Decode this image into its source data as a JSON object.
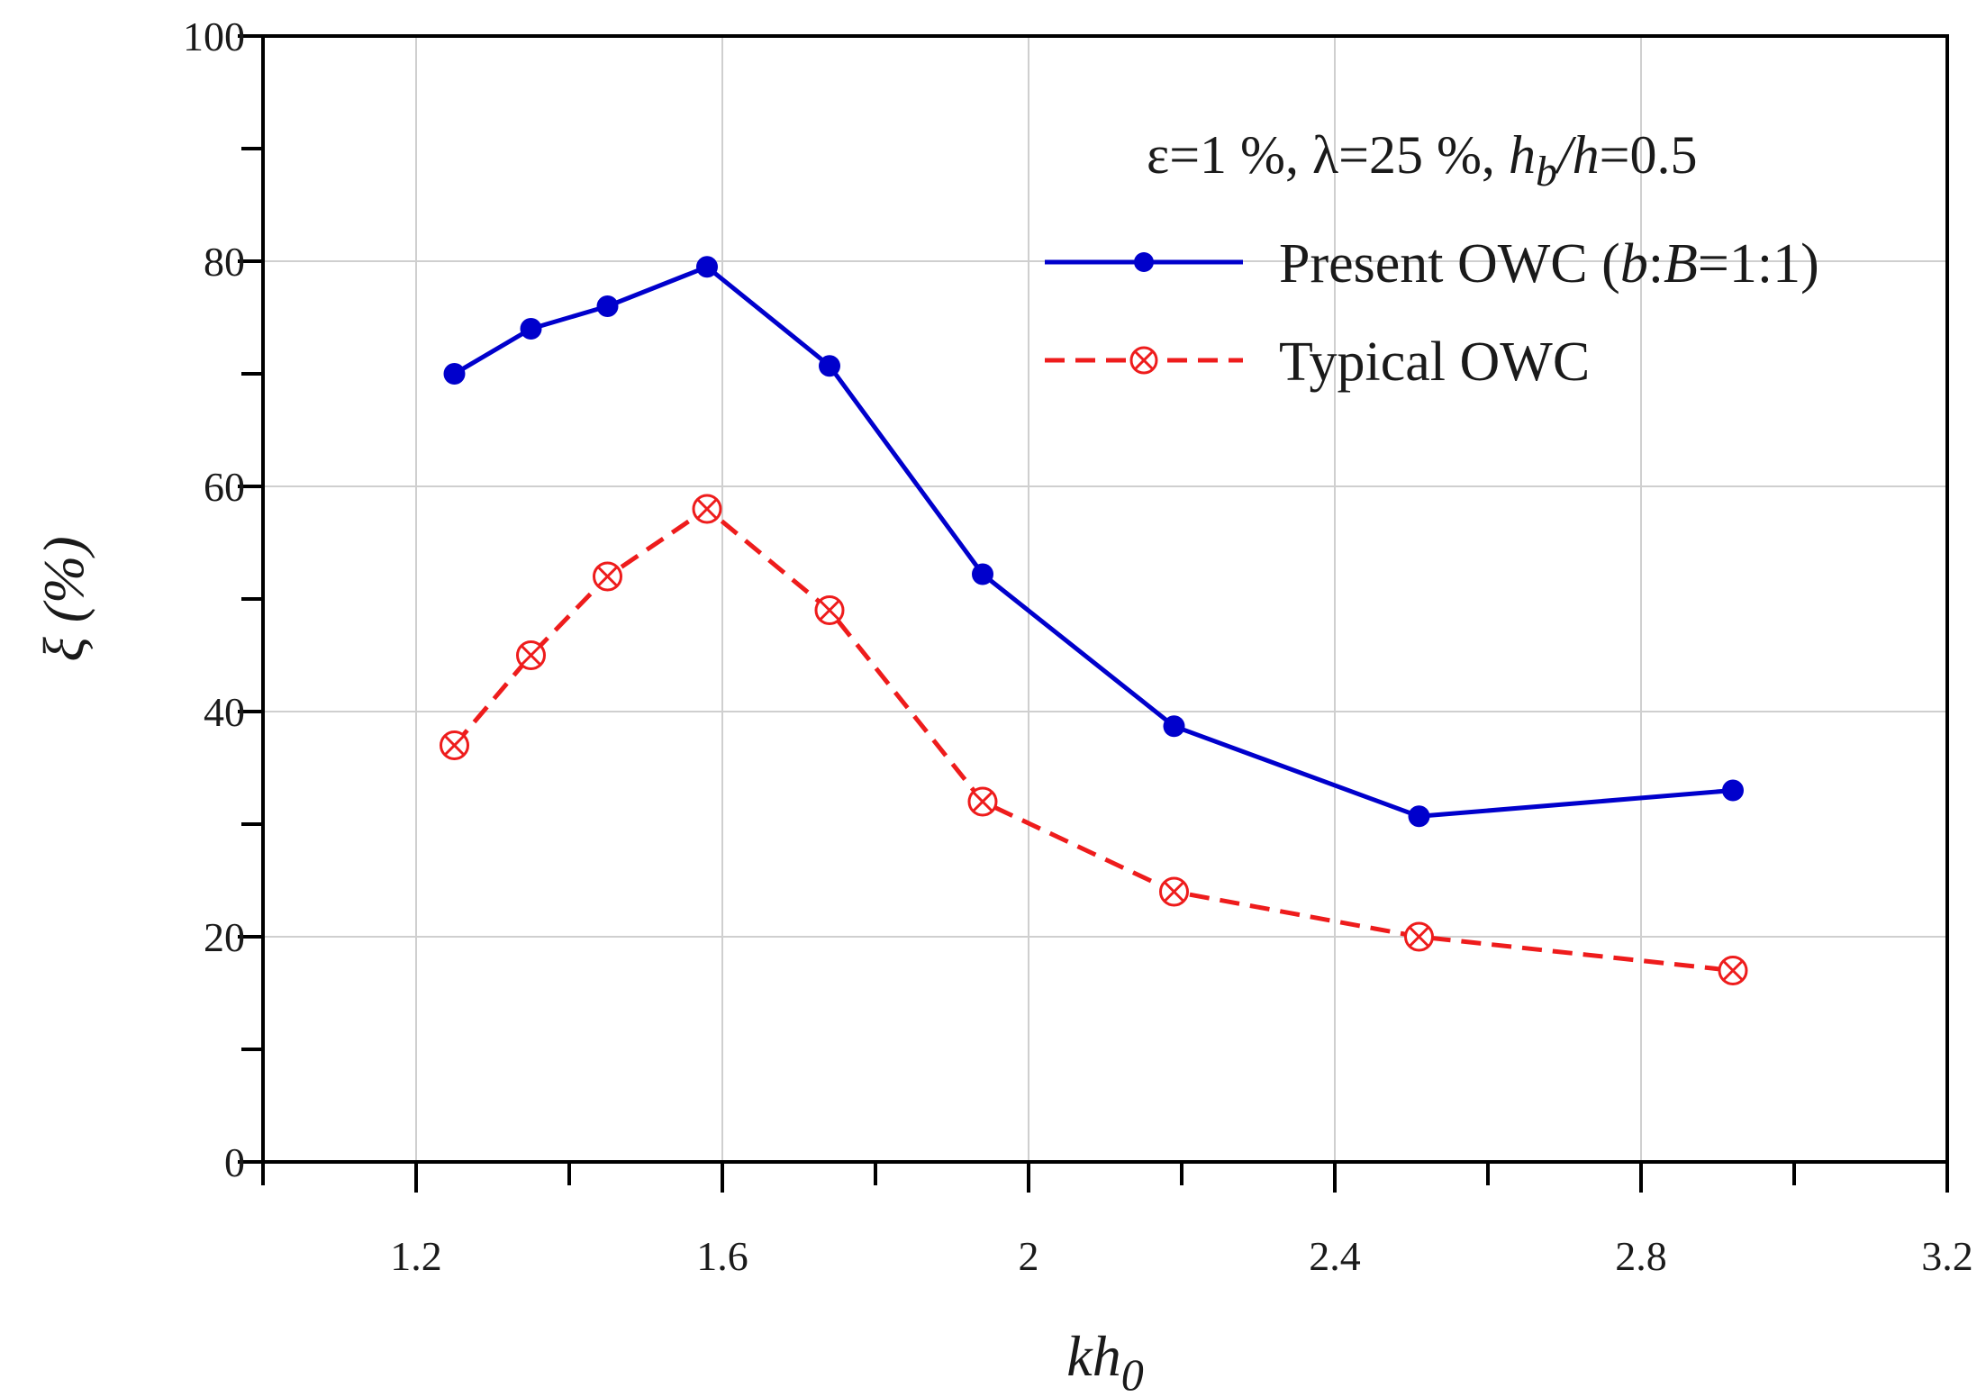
{
  "chart_data": {
    "type": "line",
    "title": "",
    "xlabel": "kh",
    "xlabel_sub": "0",
    "ylabel": "ξ (%)",
    "xlim": [
      1.0,
      3.2
    ],
    "ylim": [
      0,
      100
    ],
    "xticks": [
      1.2,
      1.6,
      2.0,
      2.4,
      2.8,
      3.2
    ],
    "xtick_labels": [
      "1.2",
      "1.6",
      "2",
      "2.4",
      "2.8",
      "3.2"
    ],
    "yticks": [
      0,
      20,
      40,
      60,
      80,
      100
    ],
    "ytick_labels": [
      "0",
      "20",
      "40",
      "60",
      "80",
      "100"
    ],
    "grid": true,
    "legend_position": "top-right",
    "annotation": {
      "p1": "ε=1 %, λ=25 %, ",
      "hb_h": "h",
      "hb_sub": "b",
      "slash_h": "/h",
      "tail": "=0.5"
    },
    "series": [
      {
        "name": "Present OWC (b:B=1:1)",
        "legend_prefix": "Present OWC (",
        "legend_b": "b",
        "legend_colon": ":",
        "legend_B": "B",
        "legend_suffix": "=1:1)",
        "color": "#0000cc",
        "style": "solid",
        "marker": "filled-circle",
        "x": [
          1.25,
          1.35,
          1.45,
          1.58,
          1.74,
          1.94,
          2.19,
          2.51,
          2.92
        ],
        "y": [
          70.0,
          74.0,
          76.0,
          79.5,
          70.7,
          52.2,
          38.7,
          30.7,
          33.0
        ]
      },
      {
        "name": "Typical OWC",
        "color": "#ee1c1c",
        "style": "dashed",
        "marker": "circle-x",
        "x": [
          1.25,
          1.35,
          1.45,
          1.58,
          1.74,
          1.94,
          2.19,
          2.51,
          2.92
        ],
        "y": [
          37.0,
          45.0,
          52.0,
          58.0,
          49.0,
          32.0,
          24.0,
          20.0,
          17.0
        ]
      }
    ]
  }
}
